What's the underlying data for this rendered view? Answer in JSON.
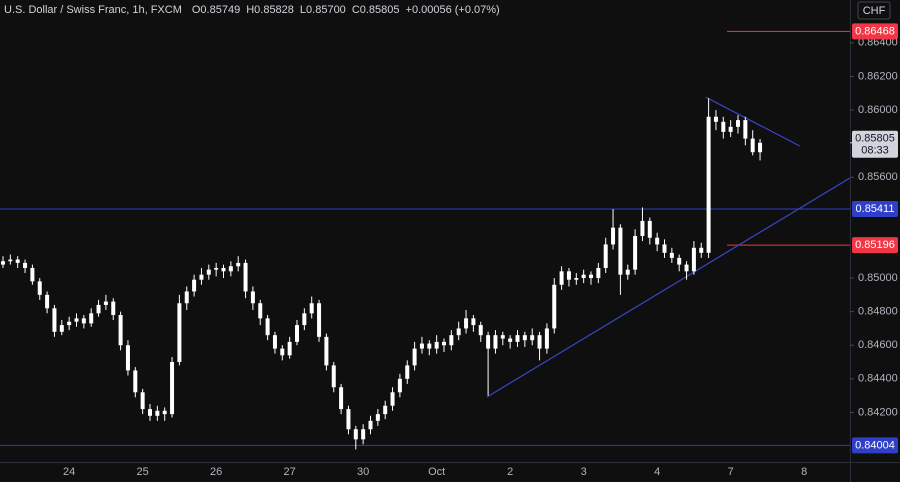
{
  "chart_data": {
    "type": "candlestick",
    "title": "U.S. Dollar / Swiss Franc, 1h, FXCM",
    "header_values": [
      "O0.85749",
      "H0.85828",
      "L0.85700",
      "C0.85805",
      "+0.00056 (+0.07%)"
    ],
    "currency": "CHF",
    "up_color": "#ffffff",
    "down_color": "#ffffff",
    "ylim": [
      0.83905,
      0.86655
    ],
    "yticks": [
      {
        "value": 0.864,
        "label": "0.86400"
      },
      {
        "value": 0.862,
        "label": "0.86200"
      },
      {
        "value": 0.86,
        "label": "0.86000"
      },
      {
        "value": 0.856,
        "label": "0.85600"
      },
      {
        "value": 0.85,
        "label": "0.85000"
      },
      {
        "value": 0.848,
        "label": "0.84800"
      },
      {
        "value": 0.846,
        "label": "0.84600"
      },
      {
        "value": 0.844,
        "label": "0.84400"
      },
      {
        "value": 0.842,
        "label": "0.84200"
      }
    ],
    "categories": [
      null,
      null,
      null,
      null,
      null,
      null,
      null,
      null,
      null,
      "24",
      null,
      null,
      null,
      null,
      null,
      null,
      null,
      null,
      null,
      "25",
      null,
      null,
      null,
      null,
      null,
      null,
      null,
      null,
      null,
      "26",
      null,
      null,
      null,
      null,
      null,
      null,
      null,
      null,
      null,
      "27",
      null,
      null,
      null,
      null,
      null,
      null,
      null,
      null,
      null,
      "30",
      null,
      null,
      null,
      null,
      null,
      null,
      null,
      null,
      null,
      "Oct",
      null,
      null,
      null,
      null,
      null,
      null,
      null,
      null,
      null,
      "2",
      null,
      null,
      null,
      null,
      null,
      null,
      null,
      null,
      null,
      "3",
      null,
      null,
      null,
      null,
      null,
      null,
      null,
      null,
      null,
      "4",
      null,
      null,
      null,
      null,
      null,
      null,
      null,
      null,
      null,
      "7",
      null,
      null,
      null,
      null
    ],
    "extra_x_labels": [
      {
        "value": 109,
        "label": "8"
      }
    ],
    "ohlc": [
      [
        0.8508,
        0.8513,
        0.8506,
        0.851
      ],
      [
        0.851,
        0.8514,
        0.8508,
        0.8511
      ],
      [
        0.8511,
        0.8513,
        0.8506,
        0.8509
      ],
      [
        0.8509,
        0.8511,
        0.8503,
        0.8506
      ],
      [
        0.8506,
        0.8508,
        0.8496,
        0.8498
      ],
      [
        0.8498,
        0.85,
        0.8487,
        0.849
      ],
      [
        0.849,
        0.8492,
        0.8479,
        0.8482
      ],
      [
        0.8482,
        0.8484,
        0.8465,
        0.8468
      ],
      [
        0.8468,
        0.8475,
        0.8466,
        0.8472
      ],
      [
        0.8472,
        0.8477,
        0.8469,
        0.8474
      ],
      [
        0.8474,
        0.8479,
        0.8471,
        0.8476
      ],
      [
        0.8476,
        0.8478,
        0.847,
        0.8473
      ],
      [
        0.8473,
        0.8482,
        0.8471,
        0.8479
      ],
      [
        0.8479,
        0.8487,
        0.8477,
        0.8484
      ],
      [
        0.8484,
        0.849,
        0.8481,
        0.8486
      ],
      [
        0.8486,
        0.8488,
        0.8475,
        0.8478
      ],
      [
        0.8478,
        0.848,
        0.8457,
        0.846
      ],
      [
        0.846,
        0.8463,
        0.8442,
        0.8445
      ],
      [
        0.8445,
        0.8447,
        0.8429,
        0.8432
      ],
      [
        0.8432,
        0.8434,
        0.8419,
        0.8422
      ],
      [
        0.8422,
        0.8425,
        0.8415,
        0.8418
      ],
      [
        0.8418,
        0.8424,
        0.8415,
        0.8421
      ],
      [
        0.8421,
        0.8423,
        0.8415,
        0.8419
      ],
      [
        0.8419,
        0.8453,
        0.8417,
        0.845
      ],
      [
        0.845,
        0.849,
        0.8448,
        0.8485
      ],
      [
        0.8485,
        0.8495,
        0.8481,
        0.8492
      ],
      [
        0.8492,
        0.8502,
        0.8489,
        0.8499
      ],
      [
        0.8499,
        0.8506,
        0.8496,
        0.8502
      ],
      [
        0.8502,
        0.8508,
        0.8499,
        0.8505
      ],
      [
        0.8505,
        0.8509,
        0.8501,
        0.8506
      ],
      [
        0.8506,
        0.8508,
        0.85,
        0.8504
      ],
      [
        0.8504,
        0.851,
        0.8501,
        0.8507
      ],
      [
        0.8507,
        0.8513,
        0.8504,
        0.8509
      ],
      [
        0.8509,
        0.8511,
        0.8488,
        0.8492
      ],
      [
        0.8492,
        0.8495,
        0.8481,
        0.8485
      ],
      [
        0.8485,
        0.8487,
        0.8472,
        0.8476
      ],
      [
        0.8476,
        0.8478,
        0.8463,
        0.8466
      ],
      [
        0.8466,
        0.8468,
        0.8455,
        0.8458
      ],
      [
        0.8458,
        0.846,
        0.8451,
        0.8454
      ],
      [
        0.8454,
        0.8465,
        0.8452,
        0.8462
      ],
      [
        0.8462,
        0.8475,
        0.846,
        0.8472
      ],
      [
        0.8472,
        0.8482,
        0.8469,
        0.8479
      ],
      [
        0.8479,
        0.8489,
        0.8476,
        0.8485
      ],
      [
        0.8485,
        0.8487,
        0.8462,
        0.8465
      ],
      [
        0.8465,
        0.8467,
        0.8445,
        0.8448
      ],
      [
        0.8448,
        0.845,
        0.8432,
        0.8435
      ],
      [
        0.8435,
        0.8437,
        0.8419,
        0.8422
      ],
      [
        0.8422,
        0.8424,
        0.8407,
        0.841
      ],
      [
        0.841,
        0.8412,
        0.8398,
        0.8404
      ],
      [
        0.8404,
        0.8413,
        0.8401,
        0.841
      ],
      [
        0.841,
        0.8418,
        0.8407,
        0.8415
      ],
      [
        0.8415,
        0.8422,
        0.8412,
        0.8419
      ],
      [
        0.8419,
        0.8427,
        0.8416,
        0.8424
      ],
      [
        0.8424,
        0.8435,
        0.8421,
        0.8432
      ],
      [
        0.8432,
        0.8443,
        0.8429,
        0.844
      ],
      [
        0.844,
        0.8451,
        0.8437,
        0.8448
      ],
      [
        0.8448,
        0.8462,
        0.8445,
        0.8458
      ],
      [
        0.8458,
        0.8465,
        0.8455,
        0.8461
      ],
      [
        0.8461,
        0.8463,
        0.8454,
        0.8458
      ],
      [
        0.8458,
        0.8466,
        0.8455,
        0.8462
      ],
      [
        0.8462,
        0.8464,
        0.8456,
        0.846
      ],
      [
        0.846,
        0.8469,
        0.8457,
        0.8466
      ],
      [
        0.8466,
        0.8474,
        0.8463,
        0.847
      ],
      [
        0.847,
        0.8481,
        0.8467,
        0.8476
      ],
      [
        0.8476,
        0.8478,
        0.8468,
        0.8472
      ],
      [
        0.8472,
        0.8474,
        0.8462,
        0.8466
      ],
      [
        0.8466,
        0.8468,
        0.843,
        0.8458
      ],
      [
        0.8458,
        0.8469,
        0.8455,
        0.8466
      ],
      [
        0.8466,
        0.8468,
        0.846,
        0.8464
      ],
      [
        0.8464,
        0.8466,
        0.8458,
        0.8462
      ],
      [
        0.8462,
        0.8469,
        0.8459,
        0.8466
      ],
      [
        0.8466,
        0.8468,
        0.8459,
        0.8463
      ],
      [
        0.8463,
        0.847,
        0.846,
        0.8466
      ],
      [
        0.8466,
        0.8468,
        0.8451,
        0.8458
      ],
      [
        0.8458,
        0.8473,
        0.8455,
        0.847
      ],
      [
        0.847,
        0.85,
        0.8467,
        0.8496
      ],
      [
        0.8496,
        0.8507,
        0.8493,
        0.8504
      ],
      [
        0.8504,
        0.8506,
        0.8495,
        0.8499
      ],
      [
        0.8499,
        0.8503,
        0.8496,
        0.85
      ],
      [
        0.85,
        0.8505,
        0.8497,
        0.8502
      ],
      [
        0.8502,
        0.8504,
        0.8496,
        0.85
      ],
      [
        0.85,
        0.8509,
        0.8497,
        0.8506
      ],
      [
        0.8506,
        0.8524,
        0.8503,
        0.852
      ],
      [
        0.852,
        0.8541,
        0.8517,
        0.853
      ],
      [
        0.853,
        0.8532,
        0.849,
        0.8502
      ],
      [
        0.8502,
        0.8508,
        0.8499,
        0.8505
      ],
      [
        0.8505,
        0.8529,
        0.8502,
        0.8525
      ],
      [
        0.8525,
        0.8542,
        0.8522,
        0.8534
      ],
      [
        0.8534,
        0.8536,
        0.852,
        0.8524
      ],
      [
        0.8524,
        0.8527,
        0.8516,
        0.852
      ],
      [
        0.852,
        0.8523,
        0.8512,
        0.8515
      ],
      [
        0.8515,
        0.8518,
        0.8509,
        0.8512
      ],
      [
        0.8512,
        0.8514,
        0.8504,
        0.8508
      ],
      [
        0.8508,
        0.851,
        0.8499,
        0.8504
      ],
      [
        0.8504,
        0.8522,
        0.8502,
        0.8518
      ],
      [
        0.8518,
        0.8521,
        0.8512,
        0.8515
      ],
      [
        0.8515,
        0.8607,
        0.8512,
        0.8596
      ],
      [
        0.8596,
        0.86,
        0.8588,
        0.8593
      ],
      [
        0.8593,
        0.8596,
        0.8583,
        0.8587
      ],
      [
        0.8587,
        0.8594,
        0.8584,
        0.859
      ],
      [
        0.859,
        0.8597,
        0.8586,
        0.8594
      ],
      [
        0.8594,
        0.8596,
        0.8579,
        0.8583
      ],
      [
        0.8583,
        0.8588,
        0.8573,
        0.85749
      ],
      [
        0.85749,
        0.85828,
        0.857,
        0.85805
      ]
    ],
    "levels": [
      {
        "value": 0.86468,
        "label": "0.86468",
        "color": "#f23645",
        "start": 98.5
      },
      {
        "value": 0.85411,
        "label": "0.85411",
        "color": "#2f3fc8",
        "start": null
      },
      {
        "value": 0.85196,
        "label": "0.85196",
        "color": "#f23645",
        "start": 98.5
      },
      {
        "value": 0.84004,
        "label": "0.84004",
        "color": "#2f3fc8",
        "start": null
      }
    ],
    "trendlines": [
      {
        "color": "#3848c8",
        "points": [
          [
            95.6,
            0.86077
          ],
          [
            108.4,
            0.85786
          ]
        ]
      },
      {
        "color": "#3848c8",
        "points": [
          [
            65.85,
            0.84292
          ],
          [
            115.2,
            0.85595
          ]
        ]
      }
    ],
    "last_price": {
      "value": 0.85805,
      "label": "0.85805",
      "countdown": "08:33"
    }
  }
}
